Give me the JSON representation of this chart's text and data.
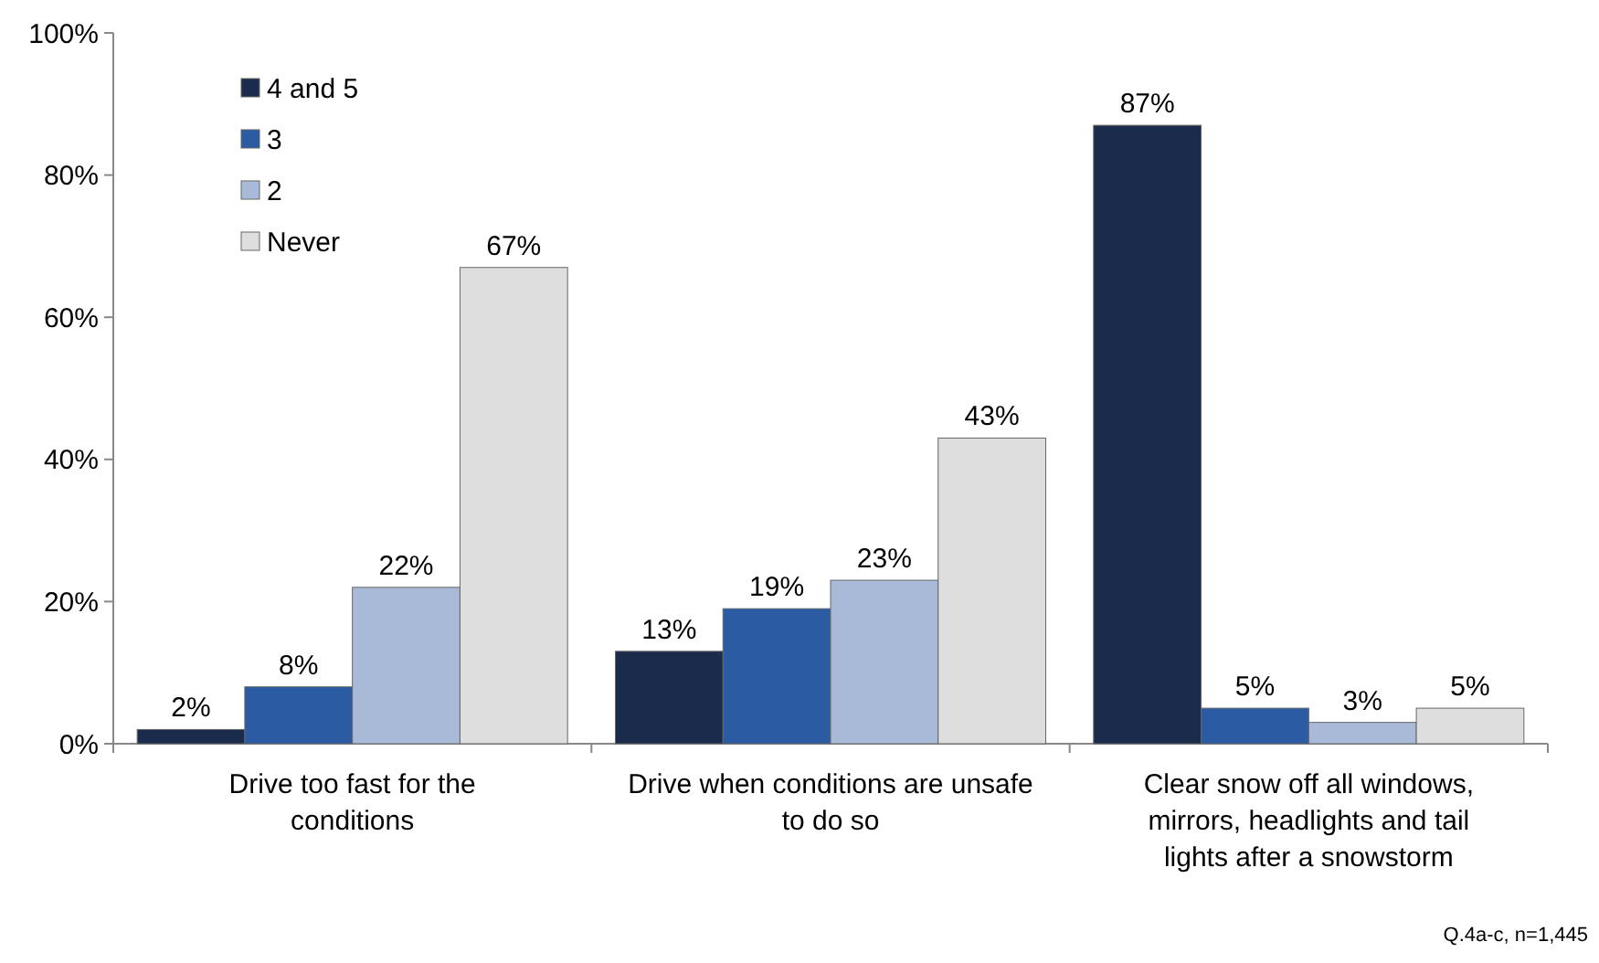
{
  "chart_data": {
    "type": "bar",
    "categories": [
      "Drive too fast for the conditions",
      "Drive when conditions are unsafe to do so",
      "Clear snow off all windows, mirrors, headlights and tail lights after a snowstorm"
    ],
    "series": [
      {
        "name": "4 and 5",
        "color": "#1b2b4b",
        "values": [
          2,
          13,
          87
        ]
      },
      {
        "name": "3",
        "color": "#2b5ba3",
        "values": [
          8,
          19,
          5
        ]
      },
      {
        "name": "2",
        "color": "#a9bad9",
        "values": [
          22,
          23,
          3
        ]
      },
      {
        "name": "Never",
        "color": "#dedede",
        "values": [
          67,
          43,
          5
        ]
      }
    ],
    "ylim": [
      0,
      100
    ],
    "yticks": [
      {
        "value": 0,
        "label": "0%"
      },
      {
        "value": 20,
        "label": "20%"
      },
      {
        "value": 40,
        "label": "40%"
      },
      {
        "value": 60,
        "label": "60%"
      },
      {
        "value": 80,
        "label": "80%"
      },
      {
        "value": 100,
        "label": "100%"
      }
    ],
    "value_labels": [
      [
        "2%",
        "13%",
        "87%"
      ],
      [
        "8%",
        "19%",
        "5%"
      ],
      [
        "22%",
        "23%",
        "3%"
      ],
      [
        "67%",
        "43%",
        "5%"
      ]
    ],
    "legend": "top left",
    "grid": false,
    "annotations": [
      "Q.4a-c, n=1,445"
    ]
  }
}
